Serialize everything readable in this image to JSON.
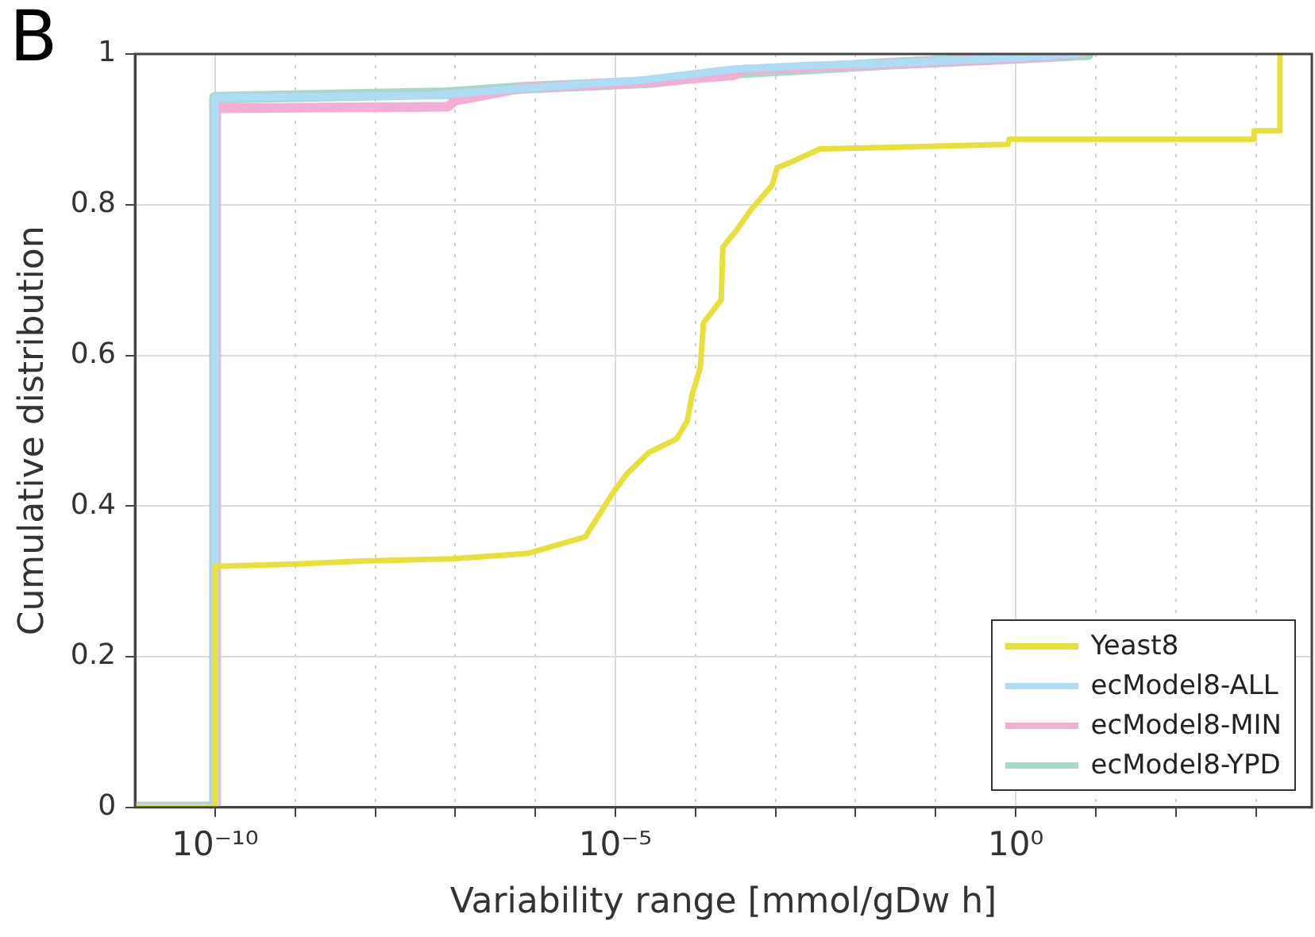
{
  "chart_data": {
    "type": "line",
    "xlabel": "Variability range [mmol/gDw h]",
    "ylabel": "Cumulative distribution",
    "annotations": [
      "B"
    ],
    "log": "x",
    "grid": true,
    "legend": "bottom right",
    "marker": "none",
    "line_style": "solid",
    "xlim": [
      1e-11,
      5000
    ],
    "ylim": [
      0,
      1
    ],
    "xticks": [
      {
        "value": 1e-10,
        "label": "10⁻¹⁰"
      },
      {
        "value": 1e-09,
        "label": null
      },
      {
        "value": 1e-08,
        "label": null
      },
      {
        "value": 1e-07,
        "label": null
      },
      {
        "value": 1e-06,
        "label": null
      },
      {
        "value": 1e-05,
        "label": "10⁻⁵"
      },
      {
        "value": 0.0001,
        "label": null
      },
      {
        "value": 0.001,
        "label": null
      },
      {
        "value": 0.01,
        "label": null
      },
      {
        "value": 0.1,
        "label": null
      },
      {
        "value": 1,
        "label": "10⁰"
      },
      {
        "value": 10,
        "label": null
      },
      {
        "value": 100,
        "label": null
      },
      {
        "value": 1000,
        "label": null
      }
    ],
    "yticks": [
      0,
      0.2,
      0.4,
      0.6,
      0.8,
      1
    ],
    "series": [
      {
        "name": "Yeast8",
        "color": "#e8e03a",
        "x": [
          1e-11,
          1e-10,
          1e-10,
          1.05e-09,
          6.6e-09,
          9.1e-08,
          7.9e-07,
          4.2e-06,
          9.1e-06,
          1.4e-05,
          2.6e-05,
          5.8e-05,
          7.9e-05,
          9.1e-05,
          0.000115,
          0.000126,
          0.00021,
          0.00022,
          0.00032,
          0.0005,
          0.00091,
          0.00105,
          0.00145,
          0.0036,
          0.023,
          0.8,
          0.83,
          950,
          950,
          2000,
          2000
        ],
        "values": [
          0,
          0,
          0.32,
          0.323,
          0.327,
          0.33,
          0.337,
          0.359,
          0.416,
          0.443,
          0.471,
          0.489,
          0.513,
          0.548,
          0.584,
          0.643,
          0.674,
          0.744,
          0.765,
          0.794,
          0.826,
          0.849,
          0.855,
          0.874,
          0.876,
          0.88,
          0.887,
          0.887,
          0.898,
          0.898,
          1
        ]
      },
      {
        "name": "ecModel8-ALL",
        "color": "#aedcf5",
        "x": [
          1e-11,
          1e-10,
          1e-10,
          5e-08,
          8e-07,
          2e-05,
          0.0003,
          0.003,
          0.03,
          1,
          6
        ],
        "values": [
          0,
          0,
          0.942,
          0.945,
          0.955,
          0.965,
          0.98,
          0.985,
          0.988,
          0.995,
          1
        ]
      },
      {
        "name": "ecModel8-MIN",
        "color": "#f2aed4",
        "x": [
          1e-11,
          1e-10,
          1e-10,
          8e-08,
          1e-07,
          7e-07,
          2.9e-05,
          0.0003,
          0.0004,
          0.025,
          1,
          6
        ],
        "values": [
          0,
          0,
          0.928,
          0.93,
          0.938,
          0.955,
          0.963,
          0.972,
          0.979,
          0.987,
          0.994,
          1
        ]
      },
      {
        "name": "ecModel8-YPD",
        "color": "#a9d8c8",
        "x": [
          1e-11,
          1e-10,
          1e-10,
          8e-08,
          7e-07,
          2.9e-05,
          0.0003,
          0.025,
          1,
          8
        ],
        "values": [
          0,
          0,
          0.942,
          0.948,
          0.955,
          0.963,
          0.975,
          0.987,
          0.995,
          1
        ]
      }
    ]
  }
}
